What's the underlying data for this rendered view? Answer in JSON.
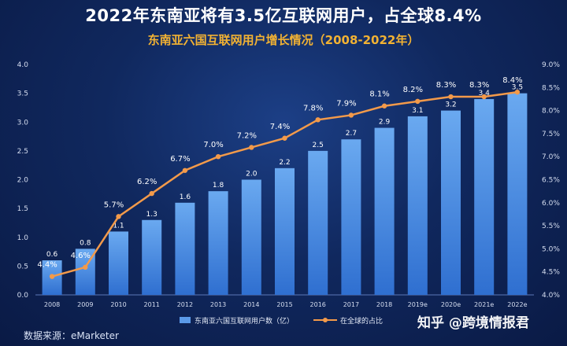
{
  "headline": "2022年东南亚将有3.5亿互联网用户，占全球8.4%",
  "chart_data": {
    "type": "bar",
    "title": "东南亚六国互联网用户增长情况（2008-2022年）",
    "categories": [
      "2008",
      "2009",
      "2010",
      "2011",
      "2012",
      "2013",
      "2014",
      "2015",
      "2016",
      "2017",
      "2018",
      "2019e",
      "2020e",
      "2021e",
      "2022e"
    ],
    "series": [
      {
        "name": "东南亚六国互联网用户数（亿）",
        "type": "bar",
        "axis": "left",
        "values": [
          0.6,
          0.8,
          1.1,
          1.3,
          1.6,
          1.8,
          2.0,
          2.2,
          2.5,
          2.7,
          2.9,
          3.1,
          3.2,
          3.4,
          3.5
        ],
        "labels": [
          "0.6",
          "0.8",
          "1.1",
          "1.3",
          "1.6",
          "1.8",
          "2.0",
          "2.2",
          "2.5",
          "2.7",
          "2.9",
          "3.1",
          "3.2",
          "3.4",
          "3.5"
        ]
      },
      {
        "name": "在全球的占比",
        "type": "line",
        "axis": "right",
        "values": [
          4.4,
          4.6,
          5.7,
          6.2,
          6.7,
          7.0,
          7.2,
          7.4,
          7.8,
          7.9,
          8.1,
          8.2,
          8.3,
          8.3,
          8.4
        ],
        "labels": [
          "4.4%",
          "4.6%",
          "5.7%",
          "6.2%",
          "6.7%",
          "7.0%",
          "7.2%",
          "7.4%",
          "7.8%",
          "7.9%",
          "8.1%",
          "8.2%",
          "8.3%",
          "8.3%",
          "8.4%"
        ]
      }
    ],
    "y_left": {
      "ylim": [
        0,
        4.0
      ],
      "ticks": [
        "0.0",
        "0.5",
        "1.0",
        "1.5",
        "2.0",
        "2.5",
        "3.0",
        "3.5",
        "4.0"
      ]
    },
    "y_right": {
      "ylim": [
        4.0,
        9.0
      ],
      "ticks": [
        "4.0%",
        "4.5%",
        "5.0%",
        "5.5%",
        "6.0%",
        "6.5%",
        "7.0%",
        "7.5%",
        "8.0%",
        "8.5%",
        "9.0%"
      ]
    },
    "grid": false,
    "legend": "bottom"
  },
  "source": "数据来源：eMarketer",
  "watermark": "知乎 @跨境情报君",
  "colors": {
    "bar_top": "#6aa9f0",
    "bar_bottom": "#2f6fd0",
    "line": "#f39a4a",
    "subtitle": "#f2b233"
  }
}
